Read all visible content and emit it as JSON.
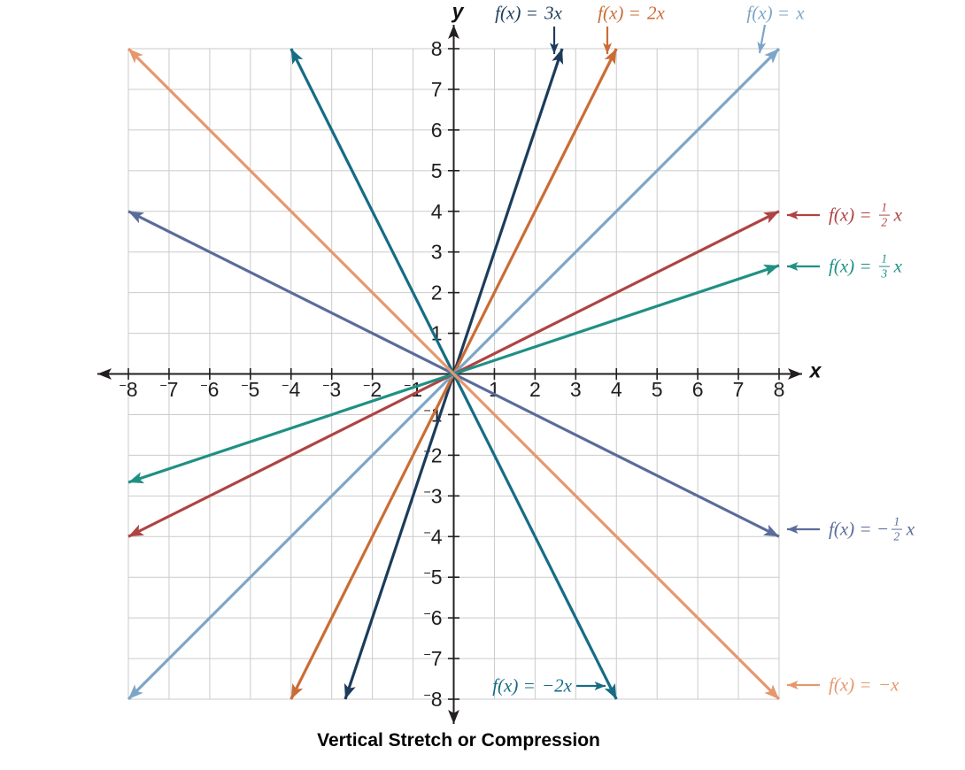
{
  "figure": {
    "caption": "Vertical Stretch or Compression",
    "background": "#ffffff"
  },
  "chart_data": {
    "type": "line",
    "title": "Vertical Stretch or Compression",
    "xlabel": "x",
    "ylabel": "y",
    "xlim": [
      -8,
      8
    ],
    "ylim": [
      -8,
      8
    ],
    "tick_step": 1,
    "grid": true,
    "grid_color": "#cbcbcb",
    "axis_color": "#231f20",
    "tick_label_color": "#1f1f1f",
    "legend_position": "callout labels around plot edges",
    "x_ticks": [
      -8,
      -7,
      -6,
      -5,
      -4,
      -3,
      -2,
      -1,
      1,
      2,
      3,
      4,
      5,
      6,
      7,
      8
    ],
    "y_ticks": [
      -8,
      -7,
      -6,
      -5,
      -4,
      -3,
      -2,
      -1,
      1,
      2,
      3,
      4,
      5,
      6,
      7,
      8
    ],
    "series": [
      {
        "id": "3x",
        "name": "f(x) = 3x",
        "slope": 3,
        "color": "#1d3c5c",
        "ends": [
          [
            -2.667,
            -8
          ],
          [
            2.667,
            8
          ]
        ],
        "label": {
          "lead": "f(x) = ",
          "tail": "3x"
        },
        "label_pos": {
          "x": 597,
          "y": 15,
          "align": "center"
        },
        "callout": {
          "from": [
            626,
            30
          ],
          "to": [
            626,
            61
          ]
        }
      },
      {
        "id": "2x",
        "name": "f(x) = 2x",
        "slope": 2,
        "color": "#cb6c34",
        "ends": [
          [
            -4,
            -8
          ],
          [
            4,
            8
          ]
        ],
        "label": {
          "lead": "f(x) = ",
          "tail": "2x"
        },
        "label_pos": {
          "x": 713,
          "y": 15,
          "align": "center"
        },
        "callout": {
          "from": [
            686,
            30
          ],
          "to": [
            686,
            61
          ]
        }
      },
      {
        "id": "x",
        "name": "f(x) = x",
        "slope": 1,
        "color": "#7ca6c8",
        "ends": [
          [
            -8,
            -8
          ],
          [
            8,
            8
          ]
        ],
        "label": {
          "lead": "f(x) = ",
          "tail": "x"
        },
        "label_pos": {
          "x": 876,
          "y": 15,
          "align": "center"
        },
        "callout": {
          "from": [
            864,
            28
          ],
          "to": [
            858,
            60
          ]
        }
      },
      {
        "id": "half-x",
        "name": "f(x) = 1/2 x",
        "slope": 0.5,
        "color": "#ae4343",
        "ends": [
          [
            -8,
            -4
          ],
          [
            8,
            4
          ]
        ],
        "label": {
          "lead": "f(x) = ",
          "frac": {
            "num": "1",
            "den": "2"
          },
          "tail": "x"
        },
        "label_pos": {
          "x": 936,
          "y": 243,
          "align": "left"
        },
        "callout": {
          "from": [
            926,
            243
          ],
          "to": [
            889,
            243
          ]
        }
      },
      {
        "id": "third-x",
        "name": "f(x) = 1/3 x",
        "slope": 0.3333,
        "color": "#1f9084",
        "ends": [
          [
            -8,
            -2.667
          ],
          [
            8,
            2.667
          ]
        ],
        "label": {
          "lead": "f(x) = ",
          "frac": {
            "num": "1",
            "den": "3"
          },
          "tail": "x"
        },
        "label_pos": {
          "x": 936,
          "y": 301,
          "align": "left"
        },
        "callout": {
          "from": [
            926,
            301
          ],
          "to": [
            889,
            301
          ]
        }
      },
      {
        "id": "neg-half-x",
        "name": "f(x) = −1/2 x",
        "slope": -0.5,
        "color": "#5a6b9b",
        "ends": [
          [
            -8,
            4
          ],
          [
            8,
            -4
          ]
        ],
        "label": {
          "lead": "f(x) = −",
          "frac": {
            "num": "1",
            "den": "2"
          },
          "tail": "x"
        },
        "label_pos": {
          "x": 936,
          "y": 598,
          "align": "left"
        },
        "callout": {
          "from": [
            926,
            598
          ],
          "to": [
            889,
            598
          ]
        }
      },
      {
        "id": "neg-2x",
        "name": "f(x) = −2x",
        "slope": -2,
        "color": "#166c84",
        "ends": [
          [
            -4,
            8
          ],
          [
            4,
            -8
          ]
        ],
        "label": {
          "lead": "f(x) = ",
          "tail": "−2x"
        },
        "label_pos": {
          "x": 646,
          "y": 775,
          "align": "right"
        },
        "callout": {
          "from": [
            651,
            775
          ],
          "to": [
            684,
            775
          ]
        }
      },
      {
        "id": "neg-x",
        "name": "f(x) = −x",
        "slope": -1,
        "color": "#e5986d",
        "ends": [
          [
            -8,
            8
          ],
          [
            8,
            -8
          ]
        ],
        "label": {
          "lead": "f(x) = ",
          "tail": "−x"
        },
        "label_pos": {
          "x": 936,
          "y": 774,
          "align": "left"
        },
        "callout": {
          "from": [
            926,
            774
          ],
          "to": [
            889,
            774
          ]
        }
      }
    ]
  }
}
